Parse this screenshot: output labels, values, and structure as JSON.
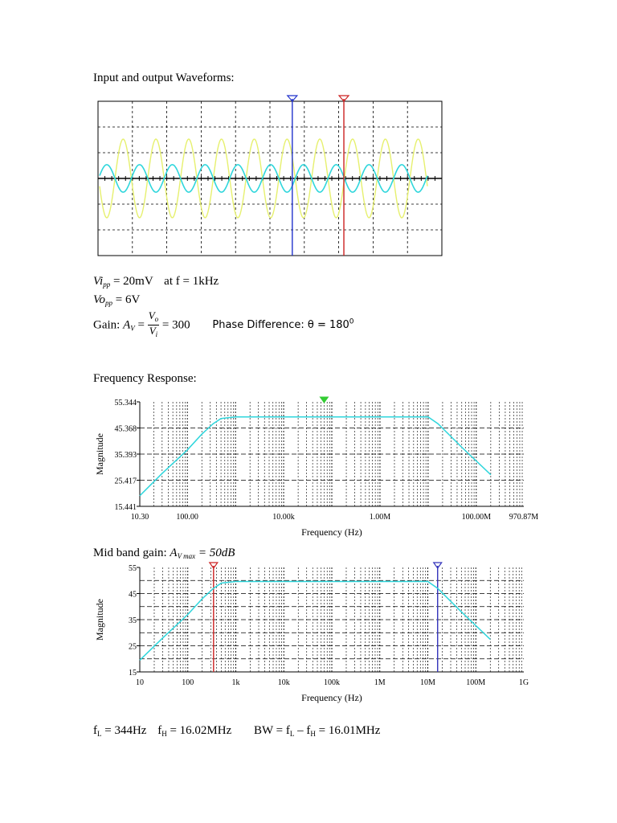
{
  "headings": {
    "waveforms": "Input and output Waveforms:",
    "freq_response": "Frequency Response:"
  },
  "measurements": {
    "vi_sym": "Vi",
    "vi_sub": "pp",
    "vi_val": "= 20mV",
    "vi_freq": "at f = 1kHz",
    "vo_sym": "Vo",
    "vo_sub": "pp",
    "vo_val": "= 6V",
    "gain_label": "Gain: ",
    "gain_sym": "A",
    "gain_sub": "V",
    "gain_eq": "=",
    "gain_num": "V",
    "gain_num_sub": "o",
    "gain_den": "V",
    "gain_den_sub": "i",
    "gain_val": "= 300",
    "phase_label": "Phase Difference: θ = 180",
    "phase_exp": "0"
  },
  "midband": {
    "label": "Mid band gain: ",
    "sym": "A",
    "sub": "V max",
    "val": " = 50",
    "unit": "dB"
  },
  "bandwidth": {
    "fl_sym": "f",
    "fl_sub": "L",
    "fl_val": " = 344Hz",
    "fh_sym": "f",
    "fh_sub": "H",
    "fh_val": " = 16.02MHz",
    "bw_pre": "BW = f",
    "bw_sub1": "L",
    "bw_mid": " – f",
    "bw_sub2": "H",
    "bw_val": " = 16.01MHz"
  },
  "chart_data": [
    {
      "type": "line",
      "description_source": "oscilloscope",
      "series": [
        {
          "color": "#e6f06e",
          "amplitude_rel": 1.0,
          "phase_deg": 180
        },
        {
          "color": "#2fd6dc",
          "amplitude_rel": 0.35,
          "phase_deg": 0
        }
      ],
      "cycles_visible": 10,
      "cursor_colors": [
        "#2233cc",
        "#cc2222"
      ],
      "grid": true
    },
    {
      "type": "line",
      "xscale": "log",
      "xlabel": "Frequency (Hz)",
      "ylabel": "Magnitude",
      "xlim": [
        10.3,
        970870000
      ],
      "ylim": [
        15.441,
        55.344
      ],
      "xticks": [
        "10.30",
        "100.00",
        "10.00k",
        "1.00M",
        "100.00M",
        "970.87M"
      ],
      "xtick_values": [
        10.3,
        100,
        10000,
        1000000,
        100000000,
        970870000
      ],
      "yticks": [
        "15.441",
        "25.417",
        "35.393",
        "45.368",
        "55.344"
      ],
      "ytick_values": [
        15.441,
        25.417,
        35.393,
        45.368,
        55.344
      ],
      "series": [
        {
          "color": "#2fd6dc",
          "x": [
            10.3,
            30,
            100,
            200,
            344,
            500,
            1000,
            1000000,
            10000000,
            16020000,
            50000000,
            200000000
          ],
          "y": [
            19.5,
            28,
            37,
            43,
            47,
            49,
            49.6,
            49.6,
            49.6,
            47,
            38,
            27.5
          ]
        }
      ],
      "cursor_colors": [
        "#33cc33"
      ],
      "grid": true
    },
    {
      "type": "line",
      "xscale": "log",
      "xlabel": "Frequency (Hz)",
      "ylabel": "Magnitude",
      "xlim": [
        10,
        1000000000
      ],
      "ylim": [
        15,
        55
      ],
      "xticks": [
        "10",
        "100",
        "1k",
        "10k",
        "100k",
        "1M",
        "10M",
        "100M",
        "1G"
      ],
      "xtick_values": [
        10,
        100,
        1000,
        10000,
        100000,
        1000000,
        10000000,
        100000000,
        1000000000
      ],
      "yticks": [
        "15",
        "25",
        "35",
        "45",
        "55"
      ],
      "ytick_values": [
        15,
        25,
        35,
        45,
        55
      ],
      "series": [
        {
          "color": "#2fd6dc",
          "x": [
            10,
            30,
            100,
            200,
            344,
            500,
            1000,
            1000000,
            10000000,
            16020000,
            50000000,
            200000000
          ],
          "y": [
            19.5,
            28,
            37,
            43,
            47,
            49,
            49.6,
            49.6,
            49.6,
            47,
            38,
            27.5
          ]
        }
      ],
      "cursors_x": [
        344,
        16020000
      ],
      "cursor_colors": [
        "#cc2222",
        "#3333bb"
      ],
      "grid": true
    }
  ]
}
